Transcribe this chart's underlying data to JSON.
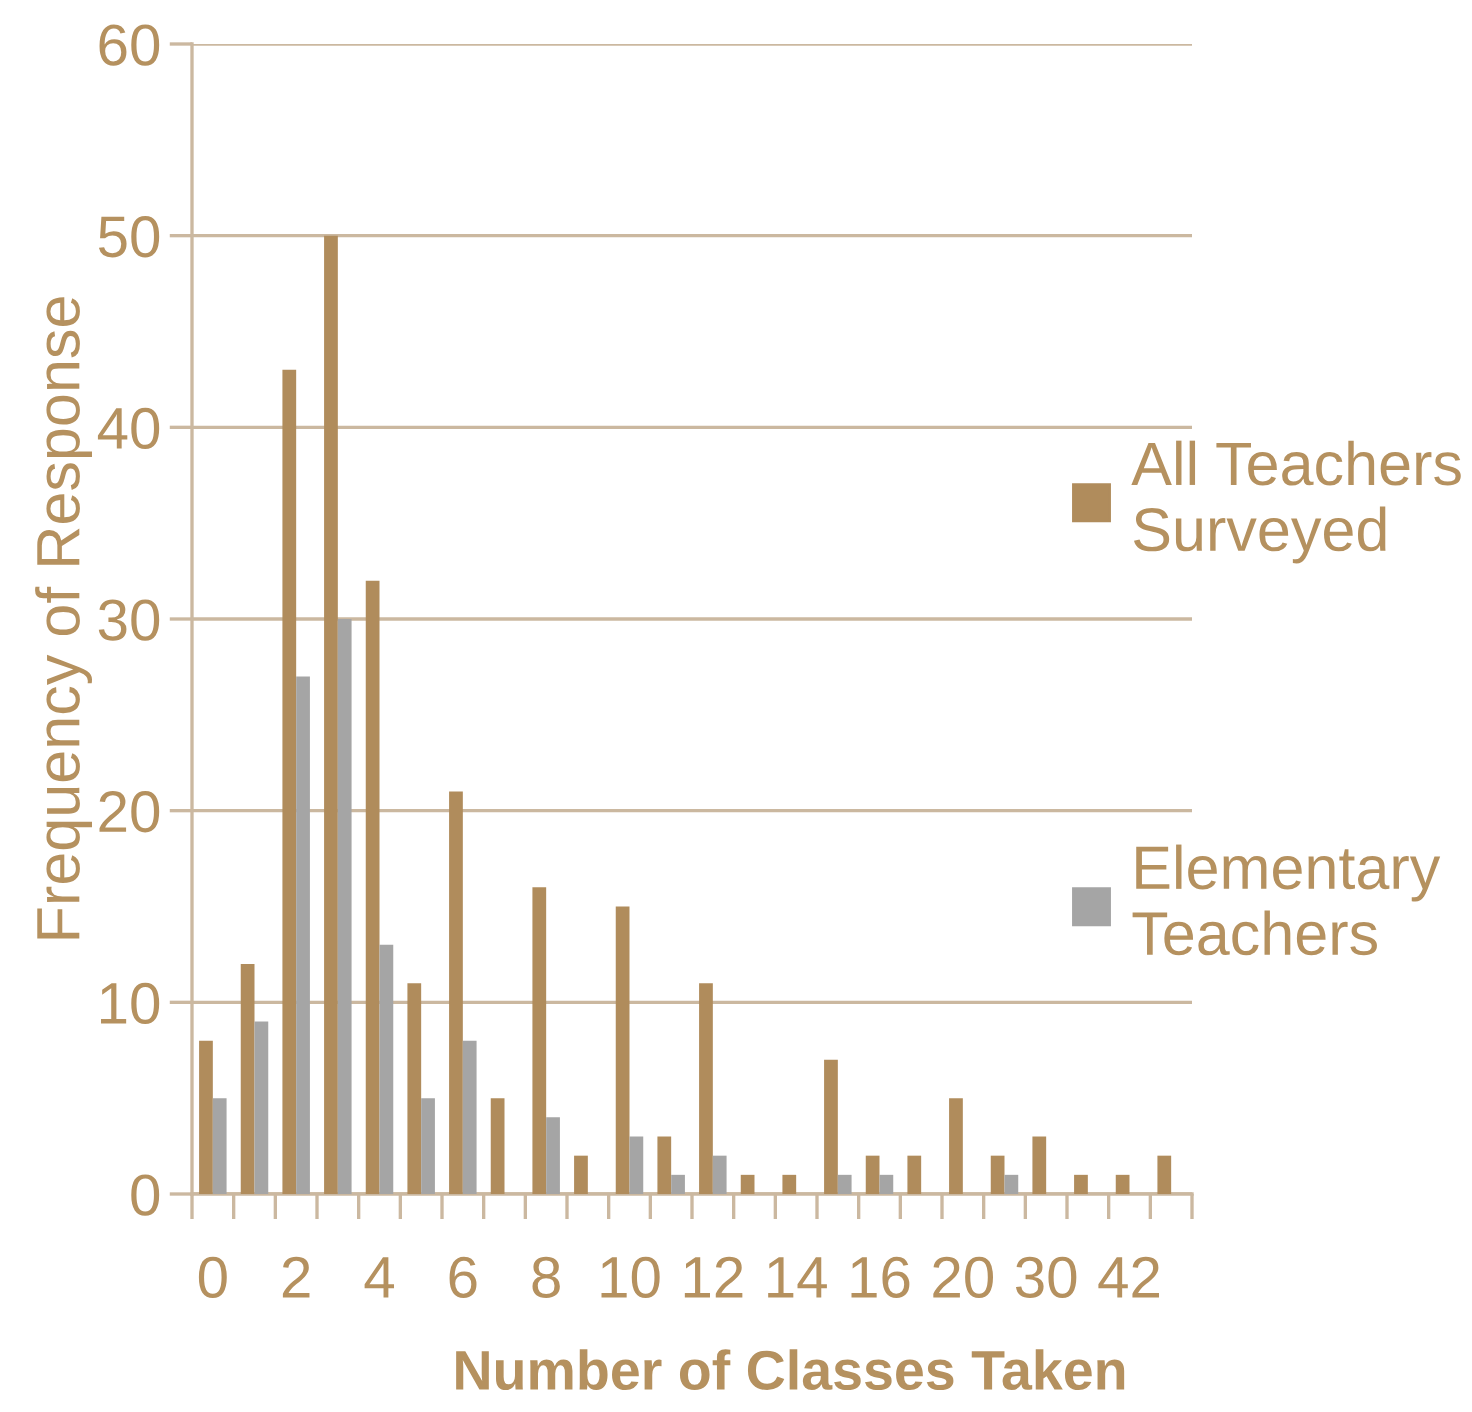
{
  "chart_data": {
    "type": "bar",
    "xlabel": "Number of Classes Taken",
    "ylabel": "Frequency of Response",
    "categories": [
      "0",
      null,
      "2",
      null,
      "4",
      null,
      "6",
      null,
      "8",
      null,
      "10",
      null,
      "12",
      null,
      "14",
      null,
      "16",
      null,
      "20",
      null,
      "30",
      null,
      "42",
      null
    ],
    "series": [
      {
        "name": "All Teachers Surveyed",
        "color": "#b08c5c",
        "values": [
          8,
          12,
          43,
          50,
          32,
          11,
          21,
          5,
          16,
          2,
          15,
          3,
          11,
          1,
          1,
          7,
          2,
          2,
          5,
          2,
          3,
          1,
          1,
          2
        ]
      },
      {
        "name": "Elementary Teachers",
        "color": "#a5a5a5",
        "values": [
          5,
          9,
          27,
          30,
          13,
          5,
          8,
          null,
          4,
          null,
          3,
          1,
          2,
          null,
          null,
          1,
          1,
          null,
          null,
          1,
          null,
          null,
          null,
          null
        ]
      }
    ],
    "ylim": [
      0,
      60
    ],
    "yticks": [
      0,
      10,
      20,
      30,
      40,
      50,
      60
    ],
    "grid": "y",
    "legend": "right"
  }
}
